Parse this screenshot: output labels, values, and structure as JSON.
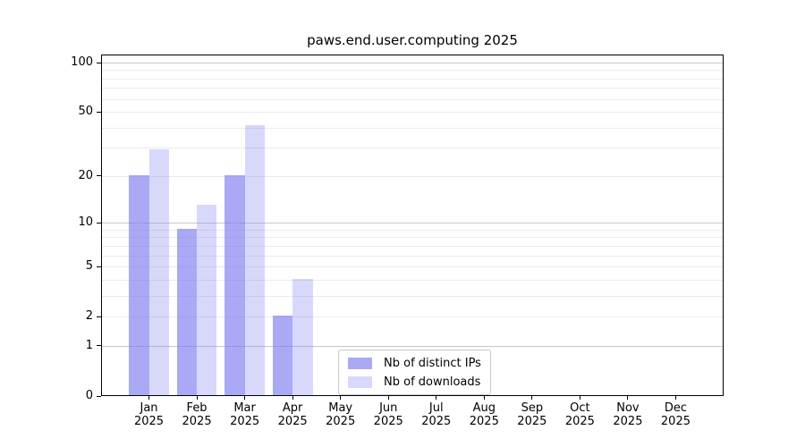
{
  "chart_data": {
    "type": "bar",
    "title": "paws.end.user.computing 2025",
    "categories": [
      "Jan",
      "Feb",
      "Mar",
      "Apr",
      "May",
      "Jun",
      "Jul",
      "Aug",
      "Sep",
      "Oct",
      "Nov",
      "Dec"
    ],
    "x_sublabel_year": "2025",
    "series": [
      {
        "name": "Nb of distinct IPs",
        "color": "#7d7df0a8",
        "values": [
          20,
          9,
          20,
          2,
          0,
          0,
          0,
          0,
          0,
          0,
          0,
          0
        ]
      },
      {
        "name": "Nb of downloads",
        "color": "#7d7df04d",
        "values": [
          29,
          13,
          41,
          4,
          0,
          0,
          0,
          0,
          0,
          0,
          0,
          0
        ]
      }
    ],
    "y_axis": {
      "scale": "log1p",
      "tick_labels": [
        0,
        1,
        2,
        5,
        10,
        20,
        50,
        100
      ],
      "major_gridlines": [
        1,
        10,
        100
      ],
      "minor_gridlines": [
        2,
        3,
        4,
        5,
        6,
        7,
        8,
        9,
        20,
        30,
        40,
        50,
        60,
        70,
        80,
        90
      ],
      "ylim": [
        0,
        100
      ]
    },
    "legend": {
      "position": "lower-center"
    },
    "grid": "both",
    "colors": {
      "major_grid": "#c8c8c8",
      "minor_grid": "#eaeaea",
      "spine": "#000000",
      "text": "#000000",
      "background": "#ffffff"
    }
  }
}
